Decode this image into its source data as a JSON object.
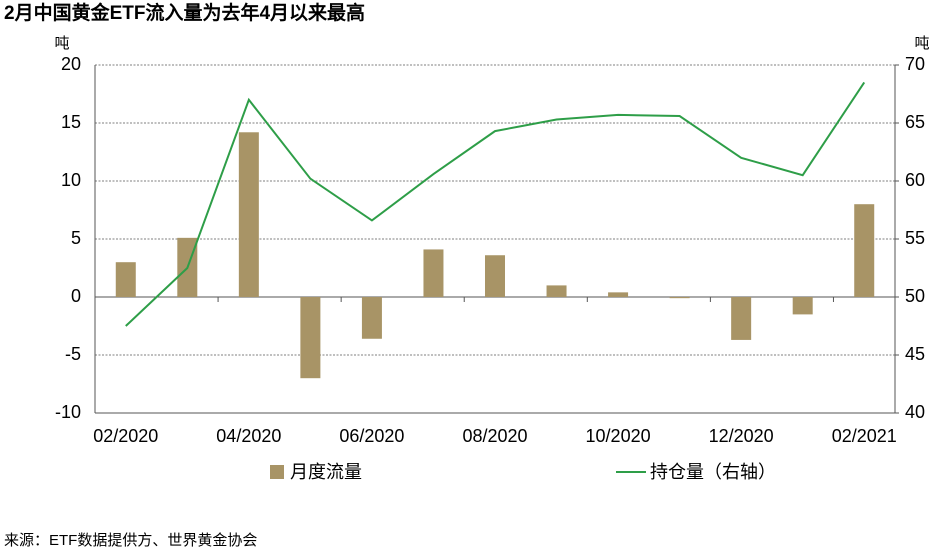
{
  "chart_data": {
    "type": "bar",
    "title": "2月中国黄金ETF流入量为去年4月以来最高",
    "y_unit": "吨",
    "y2_unit": "吨",
    "categories": [
      "02/2020",
      null,
      "04/2020",
      null,
      "06/2020",
      null,
      "08/2020",
      null,
      "10/2020",
      null,
      "12/2020",
      null,
      "02/2021"
    ],
    "series": [
      {
        "name": "月度流量",
        "type": "bar",
        "color": "#a89466",
        "values": [
          3,
          5.1,
          14.2,
          -7,
          -3.6,
          4.1,
          3.6,
          1,
          0.4,
          -0.1,
          -3.7,
          -1.5,
          8
        ]
      },
      {
        "name": "持仓量（右轴）",
        "type": "line",
        "axis": "y2",
        "color": "#2e9e48",
        "values": [
          47.5,
          52.5,
          67,
          60.2,
          56.6,
          60.6,
          64.3,
          65.3,
          65.7,
          65.6,
          62,
          60.5,
          68.5
        ]
      }
    ],
    "ylim": [
      -10,
      20
    ],
    "yticks": [
      -10,
      -5,
      0,
      5,
      10,
      15,
      20
    ],
    "y2lim": [
      40,
      70
    ],
    "y2ticks": [
      40,
      45,
      50,
      55,
      60,
      65,
      70
    ],
    "grid": true,
    "source": "来源：ETF数据提供方、世界黄金协会"
  }
}
